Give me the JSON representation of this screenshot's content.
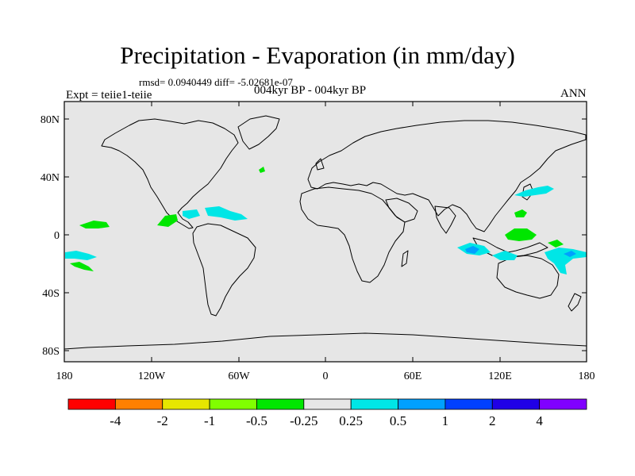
{
  "title": "Precipitation - Evaporation (in mm/day)",
  "stats": "rmsd= 0.0940449 diff= -5.02681e-07",
  "period": "004kyr BP - 004kyr BP",
  "experiment": "Expt = teiie1-teiie",
  "season": "ANN",
  "lat_labels": [
    "80N",
    "40N",
    "0",
    "40S",
    "80S"
  ],
  "lon_labels": [
    "180",
    "120W",
    "60W",
    "0",
    "60E",
    "120E",
    "180"
  ],
  "colorbar": {
    "labels": [
      "-4",
      "-2",
      "-1",
      "-0.5",
      "-0.25",
      "0.25",
      "0.5",
      "1",
      "2",
      "4"
    ],
    "colors": [
      "#ff0000",
      "#ff8000",
      "#e6e600",
      "#80ff00",
      "#00e600",
      "#e6e6e6",
      "#00e6e6",
      "#00a0ff",
      "#0040ff",
      "#2000e6",
      "#8000ff"
    ]
  },
  "colors": {
    "ocean_background": "#e6e6e6",
    "coastline": "#000000"
  }
}
